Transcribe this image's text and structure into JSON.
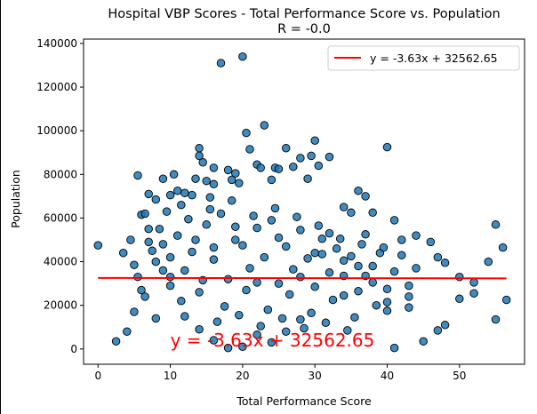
{
  "chart_data": {
    "type": "scatter",
    "title": "Hospital VBP Scores - Total Performance Score vs. Population",
    "subtitle": "R = -0.0",
    "xlabel": "Total Performance Score",
    "ylabel": "Population",
    "xlim": [
      -2,
      59
    ],
    "ylim": [
      -7000,
      142000
    ],
    "xticks": [
      0,
      10,
      20,
      30,
      40,
      50
    ],
    "yticks": [
      0,
      20000,
      40000,
      60000,
      80000,
      100000,
      120000,
      140000
    ],
    "grid": false,
    "legend_position": "top-right",
    "regression": {
      "label": "y = -3.63x + 32562.65",
      "slope": -3.63,
      "intercept": 32562.65,
      "x_range": [
        0,
        56.5
      ],
      "color": "#ff0000"
    },
    "annotation": {
      "text": "y = -3.63x + 32562.65",
      "x": 10,
      "y": 1200,
      "color": "#ff0000"
    },
    "points_color": "#1f77b4",
    "points": [
      [
        0,
        47500
      ],
      [
        2.5,
        3500
      ],
      [
        4.5,
        50000
      ],
      [
        5,
        38500
      ],
      [
        5.5,
        33000
      ],
      [
        5.5,
        79500
      ],
      [
        6,
        61500
      ],
      [
        6.5,
        62000
      ],
      [
        7,
        71000
      ],
      [
        7,
        49000
      ],
      [
        7.5,
        45000
      ],
      [
        8,
        68500
      ],
      [
        8.5,
        55000
      ],
      [
        9,
        78000
      ],
      [
        9.5,
        63000
      ],
      [
        10,
        70500
      ],
      [
        10.5,
        80000
      ],
      [
        11,
        72500
      ],
      [
        11.5,
        66000
      ],
      [
        12,
        71500
      ],
      [
        13,
        70500
      ],
      [
        13.5,
        78000
      ],
      [
        14,
        88500
      ],
      [
        14,
        92000
      ],
      [
        14.5,
        85500
      ],
      [
        15,
        77000
      ],
      [
        15.5,
        69500
      ],
      [
        16,
        83000
      ],
      [
        16,
        75500
      ],
      [
        17,
        131000
      ],
      [
        18,
        82000
      ],
      [
        18.5,
        77500
      ],
      [
        19,
        80500
      ],
      [
        19.5,
        76000
      ],
      [
        20,
        134000
      ],
      [
        20.5,
        99000
      ],
      [
        21,
        91500
      ],
      [
        22,
        84500
      ],
      [
        22.5,
        83000
      ],
      [
        23,
        102500
      ],
      [
        24,
        77500
      ],
      [
        24.5,
        83000
      ],
      [
        25,
        82500
      ],
      [
        26,
        92000
      ],
      [
        27,
        83500
      ],
      [
        28,
        87500
      ],
      [
        29,
        78000
      ],
      [
        29.5,
        88500
      ],
      [
        30,
        95500
      ],
      [
        30.5,
        84000
      ],
      [
        32,
        88000
      ],
      [
        34,
        65000
      ],
      [
        35,
        62500
      ],
      [
        36,
        72500
      ],
      [
        37,
        70000
      ],
      [
        38,
        62500
      ],
      [
        40,
        92500
      ],
      [
        41,
        59000
      ],
      [
        42,
        50000
      ],
      [
        44,
        52000
      ],
      [
        46,
        49000
      ],
      [
        47,
        42000
      ],
      [
        48,
        39500
      ],
      [
        50,
        33000
      ],
      [
        52,
        30500
      ],
      [
        54,
        40000
      ],
      [
        55,
        57000
      ],
      [
        56,
        46500
      ],
      [
        56.5,
        22500
      ],
      [
        55,
        13500
      ],
      [
        52,
        25500
      ],
      [
        50,
        23000
      ],
      [
        48,
        11000
      ],
      [
        47,
        8500
      ],
      [
        45,
        3500
      ],
      [
        43,
        19000
      ],
      [
        41,
        500
      ],
      [
        40,
        21500
      ],
      [
        38,
        38000
      ],
      [
        36,
        26500
      ],
      [
        34,
        33500
      ],
      [
        32,
        53000
      ],
      [
        30,
        44000
      ],
      [
        28,
        13500
      ],
      [
        26,
        8000
      ],
      [
        24,
        3000
      ],
      [
        22,
        6500
      ],
      [
        20,
        1000
      ],
      [
        18,
        500
      ],
      [
        16,
        4000
      ],
      [
        14,
        9000
      ],
      [
        12,
        15000
      ],
      [
        10,
        29000
      ],
      [
        9,
        36000
      ],
      [
        8,
        14000
      ],
      [
        6.5,
        24000
      ],
      [
        5,
        17000
      ],
      [
        4,
        8000
      ],
      [
        3.5,
        44000
      ],
      [
        6,
        27000
      ],
      [
        7,
        55000
      ],
      [
        8,
        40000
      ],
      [
        9,
        48000
      ],
      [
        10,
        33000
      ],
      [
        11,
        52000
      ],
      [
        12,
        36000
      ],
      [
        13,
        44500
      ],
      [
        14,
        26000
      ],
      [
        15,
        57000
      ],
      [
        16,
        41000
      ],
      [
        17,
        62000
      ],
      [
        18,
        32000
      ],
      [
        19,
        50000
      ],
      [
        20,
        47500
      ],
      [
        21,
        37000
      ],
      [
        22,
        55500
      ],
      [
        23,
        42000
      ],
      [
        24,
        59000
      ],
      [
        25,
        30000
      ],
      [
        26,
        47000
      ],
      [
        27,
        36500
      ],
      [
        28,
        54500
      ],
      [
        29,
        41500
      ],
      [
        30,
        28500
      ],
      [
        31,
        50500
      ],
      [
        32,
        35000
      ],
      [
        33,
        46000
      ],
      [
        34,
        24500
      ],
      [
        35,
        42500
      ],
      [
        36,
        38000
      ],
      [
        37,
        52500
      ],
      [
        38,
        30500
      ],
      [
        39,
        44000
      ],
      [
        40,
        27500
      ],
      [
        41,
        35500
      ],
      [
        42,
        43000
      ],
      [
        43,
        29000
      ],
      [
        44,
        37000
      ],
      [
        12.5,
        59500
      ],
      [
        15.5,
        64000
      ],
      [
        18.5,
        68000
      ],
      [
        21.5,
        61000
      ],
      [
        24.5,
        64500
      ],
      [
        27.5,
        60500
      ],
      [
        30.5,
        56500
      ],
      [
        33.5,
        50500
      ],
      [
        36.5,
        48000
      ],
      [
        39.5,
        46500
      ],
      [
        11.5,
        22000
      ],
      [
        14.5,
        31500
      ],
      [
        17.5,
        19500
      ],
      [
        20.5,
        27000
      ],
      [
        23.5,
        18000
      ],
      [
        26.5,
        25000
      ],
      [
        29.5,
        16500
      ],
      [
        32.5,
        22500
      ],
      [
        35.5,
        14500
      ],
      [
        38.5,
        20000
      ],
      [
        16.5,
        12500
      ],
      [
        19.5,
        15500
      ],
      [
        22.5,
        10500
      ],
      [
        25.5,
        14000
      ],
      [
        28.5,
        9500
      ],
      [
        31.5,
        12000
      ],
      [
        34.5,
        8500
      ],
      [
        13.5,
        50000
      ],
      [
        19,
        56000
      ],
      [
        25,
        51000
      ],
      [
        31,
        43500
      ],
      [
        37,
        33500
      ],
      [
        43,
        24000
      ],
      [
        10,
        42000
      ],
      [
        22,
        30500
      ],
      [
        28,
        33000
      ],
      [
        16,
        46500
      ],
      [
        34,
        40500
      ],
      [
        40,
        17500
      ]
    ]
  }
}
